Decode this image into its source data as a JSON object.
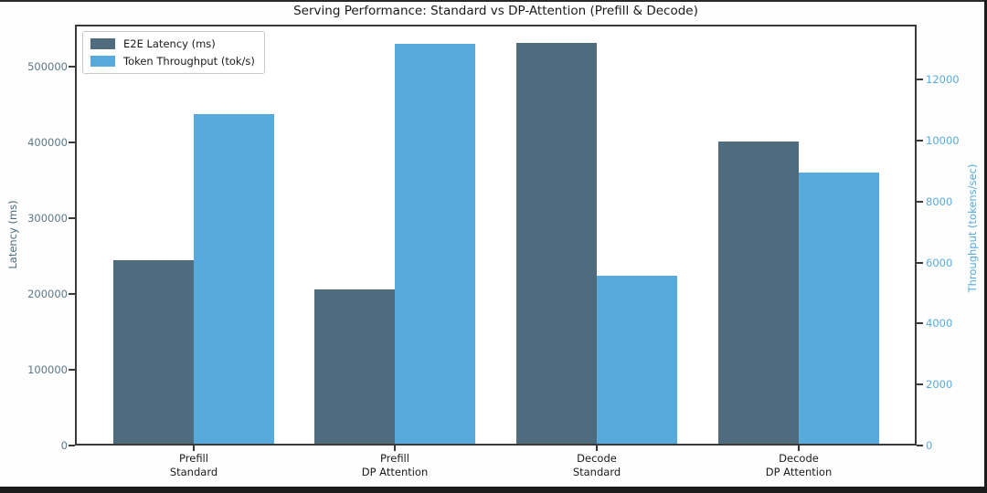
{
  "title": "Serving Performance: Standard vs DP-Attention (Prefill & Decode)",
  "colors": {
    "latency_bar": "#4e6c7e",
    "throughput_bar": "#56abdc",
    "left_axis_text": "#4e6c7e",
    "right_axis_text": "#56abdc"
  },
  "chart_data": {
    "type": "bar",
    "title": "Serving Performance: Standard vs DP-Attention (Prefill & Decode)",
    "categories": [
      "Prefill\nStandard",
      "Prefill\nDP Attention",
      "Decode\nStandard",
      "Decode\nDP Attention"
    ],
    "series": [
      {
        "name": "E2E Latency (ms)",
        "axis": "left",
        "color": "#4e6c7e",
        "values": [
          242000,
          204000,
          529000,
          399000
        ]
      },
      {
        "name": "Token Throughput (tok/s)",
        "axis": "right",
        "color": "#56abdc",
        "values": [
          10800,
          13100,
          5500,
          8900
        ]
      }
    ],
    "left_axis": {
      "label": "Latency (ms)",
      "ticks": [
        0,
        100000,
        200000,
        300000,
        400000,
        500000
      ],
      "max": 555400
    },
    "right_axis": {
      "label": "Throughput (tokens/sec)",
      "ticks": [
        0,
        2000,
        4000,
        6000,
        8000,
        10000,
        12000
      ],
      "max": 13800
    },
    "legend_position": "upper left",
    "grid": false
  }
}
